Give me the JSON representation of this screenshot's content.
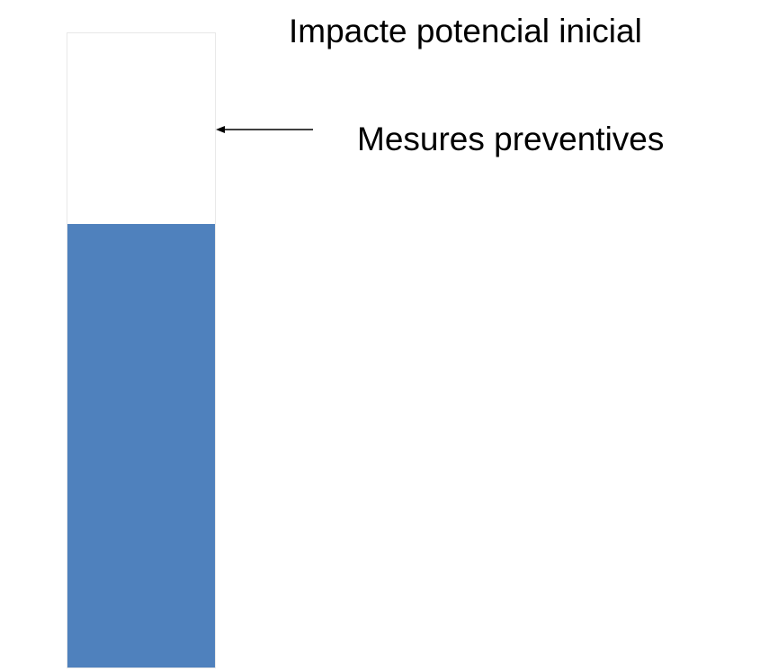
{
  "diagram": {
    "labels": {
      "top": "Impacte potencial inicial",
      "arrow": "Mesures preventives"
    },
    "bar": {
      "fill_fraction": 0.7,
      "fill_color": "#4f81bd",
      "empty_color": "#ffffff"
    }
  }
}
